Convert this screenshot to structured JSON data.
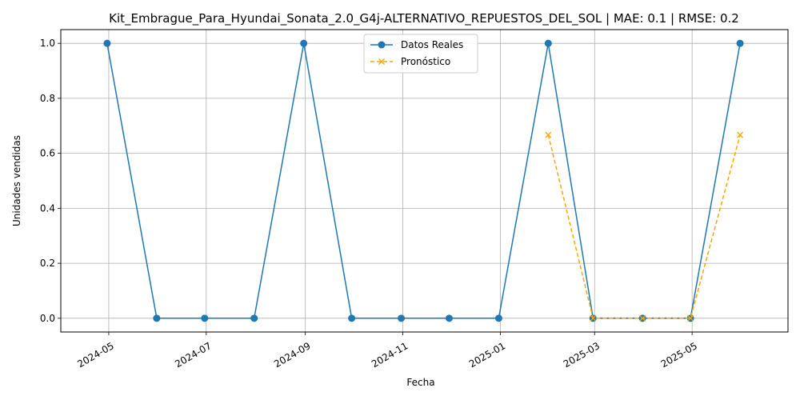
{
  "chart_data": {
    "type": "line",
    "title": "Kit_Embrague_Para_Hyundai_Sonata_2.0_G4j-ALTERNATIVO_REPUESTOS_DEL_SOL | MAE: 0.1 | RMSE: 0.2",
    "xlabel": "Fecha",
    "ylabel": "Unidades vendidas",
    "xlim": [
      "2024-04-01",
      "2025-06-30"
    ],
    "ylim": [
      -0.05,
      1.05
    ],
    "grid": true,
    "legend_position": "top-center",
    "x_ticks": [
      "2024-05",
      "2024-07",
      "2024-09",
      "2024-11",
      "2025-01",
      "2025-03",
      "2025-05"
    ],
    "x_tick_dates": [
      "2024-05-01",
      "2024-07-01",
      "2024-09-01",
      "2024-11-01",
      "2025-01-01",
      "2025-03-01",
      "2025-05-01"
    ],
    "y_ticks": [
      "0.0",
      "0.2",
      "0.4",
      "0.6",
      "0.8",
      "1.0"
    ],
    "y_tick_values": [
      0.0,
      0.2,
      0.4,
      0.6,
      0.8,
      1.0
    ],
    "series": [
      {
        "name": "Datos Reales",
        "color": "#1f77b4",
        "line_style": "solid",
        "marker": "circle",
        "x": [
          "2024-04-30",
          "2024-05-31",
          "2024-06-30",
          "2024-07-31",
          "2024-08-31",
          "2024-09-30",
          "2024-10-31",
          "2024-11-30",
          "2024-12-31",
          "2025-01-31",
          "2025-02-28",
          "2025-03-31",
          "2025-04-30",
          "2025-05-31"
        ],
        "values": [
          1,
          0,
          0,
          0,
          1,
          0,
          0,
          0,
          0,
          1,
          0,
          0,
          0,
          1
        ]
      },
      {
        "name": "Pronóstico",
        "color": "#ffa500",
        "line_style": "dashed",
        "marker": "x",
        "x": [
          "2025-01-31",
          "2025-02-28",
          "2025-03-31",
          "2025-04-30",
          "2025-05-31"
        ],
        "values": [
          0.667,
          0,
          0,
          0,
          0.667
        ]
      }
    ]
  }
}
